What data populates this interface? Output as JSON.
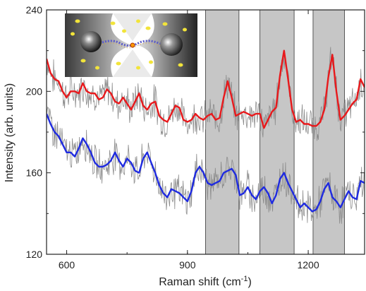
{
  "chart_data": {
    "type": "line",
    "title": "",
    "xlabel": "Raman shift (cm",
    "xlabel_sup": "-1",
    "xlabel_close": ")",
    "ylabel": "Intensity (arb. units)",
    "xlim": [
      550,
      1340
    ],
    "ylim": [
      120,
      240
    ],
    "xticks": [
      600,
      900,
      1200
    ],
    "yticks": [
      120,
      160,
      200,
      240
    ],
    "xtick_labels": [
      "600",
      "900",
      "1200"
    ],
    "ytick_labels": [
      "120",
      "160",
      "200",
      "240"
    ],
    "grid": false,
    "legend": "none",
    "shaded_bands": [
      [
        945,
        1028
      ],
      [
        1080,
        1165
      ],
      [
        1212,
        1290
      ]
    ],
    "inset": "nanoparticle junction illustration (top-left)",
    "series": [
      {
        "color": "#e8191c",
        "x": [
          550,
          560,
          570,
          580,
          590,
          600,
          610,
          620,
          630,
          640,
          650,
          660,
          670,
          680,
          690,
          700,
          710,
          720,
          730,
          740,
          750,
          760,
          770,
          780,
          790,
          800,
          810,
          820,
          830,
          840,
          850,
          860,
          870,
          880,
          890,
          900,
          910,
          920,
          930,
          940,
          950,
          960,
          970,
          980,
          990,
          1000,
          1010,
          1020,
          1030,
          1040,
          1050,
          1060,
          1070,
          1080,
          1090,
          1100,
          1110,
          1120,
          1130,
          1140,
          1150,
          1160,
          1170,
          1180,
          1190,
          1200,
          1210,
          1220,
          1230,
          1240,
          1250,
          1260,
          1270,
          1280,
          1290,
          1300,
          1310,
          1320,
          1330,
          1340
        ],
        "values": [
          216,
          209,
          206,
          205,
          200,
          197,
          200,
          200,
          199,
          204,
          200,
          199,
          199,
          196,
          197,
          201,
          199,
          195,
          194,
          197,
          194,
          191,
          195,
          199,
          193,
          191,
          194,
          195,
          188,
          186,
          185,
          189,
          193,
          192,
          186,
          185,
          186,
          189,
          187,
          186,
          188,
          189,
          186,
          187,
          197,
          205,
          197,
          188,
          189,
          190,
          189,
          188,
          189,
          189,
          182,
          186,
          190,
          192,
          208,
          220,
          206,
          191,
          185,
          186,
          184,
          184,
          183,
          183,
          185,
          191,
          207,
          218,
          200,
          186,
          188,
          191,
          194,
          196,
          206,
          202
        ]
      },
      {
        "color": "#1f2be0",
        "x": [
          550,
          560,
          570,
          580,
          590,
          600,
          610,
          620,
          630,
          640,
          650,
          660,
          670,
          680,
          690,
          700,
          710,
          720,
          730,
          740,
          750,
          760,
          770,
          780,
          790,
          800,
          810,
          820,
          830,
          840,
          850,
          860,
          870,
          880,
          890,
          900,
          910,
          920,
          930,
          940,
          950,
          960,
          970,
          980,
          990,
          1000,
          1010,
          1020,
          1030,
          1040,
          1050,
          1060,
          1070,
          1080,
          1090,
          1100,
          1110,
          1120,
          1130,
          1140,
          1150,
          1160,
          1170,
          1180,
          1190,
          1200,
          1210,
          1220,
          1230,
          1240,
          1250,
          1260,
          1270,
          1280,
          1290,
          1300,
          1310,
          1320,
          1330,
          1340
        ],
        "values": [
          189,
          184,
          180,
          178,
          174,
          170,
          170,
          168,
          172,
          177,
          174,
          170,
          165,
          163,
          163,
          164,
          166,
          170,
          166,
          163,
          167,
          165,
          161,
          160,
          167,
          170,
          165,
          160,
          154,
          150,
          148,
          152,
          151,
          150,
          148,
          146,
          151,
          160,
          163,
          160,
          155,
          154,
          155,
          156,
          160,
          161,
          162,
          159,
          149,
          150,
          153,
          149,
          147,
          151,
          153,
          150,
          145,
          149,
          157,
          160,
          155,
          151,
          147,
          143,
          145,
          143,
          141,
          142,
          146,
          152,
          155,
          148,
          146,
          143,
          147,
          151,
          148,
          147,
          156,
          155
        ]
      }
    ]
  },
  "colors": {
    "band": "#c6c6c6",
    "raw": "#8c8c8c",
    "axis": "#222222"
  }
}
